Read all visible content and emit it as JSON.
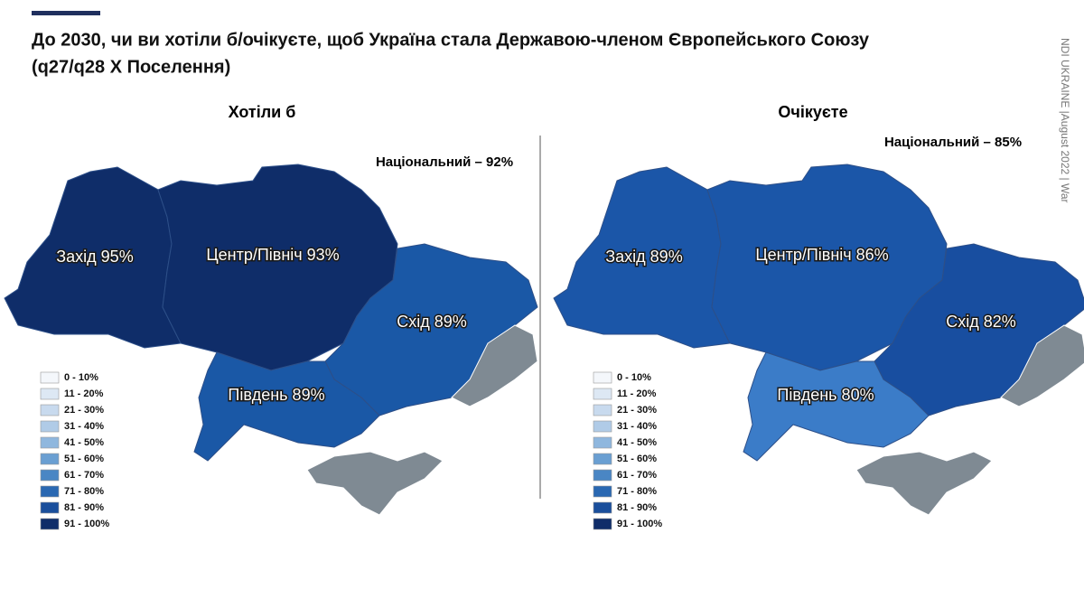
{
  "header": {
    "title_line1": "До 2030, чи ви хотіли б/очікуєте, щоб Україна стала Державою-членом Європейського Союзу",
    "title_line2": "(q27/q28 Х Поселення)"
  },
  "side_note": "NDI UKRAINE |August 2022 | War",
  "maps": [
    {
      "title": "Хотіли б",
      "national": "Національний – 92%",
      "regions": [
        {
          "label": "Захід 95%",
          "color": "#0f2d69"
        },
        {
          "label": "Центр/Північ 93%",
          "color": "#0f2d69"
        },
        {
          "label": "Схід 89%",
          "color": "#1a58a6"
        },
        {
          "label": "Південь 89%",
          "color": "#1a58a6"
        }
      ]
    },
    {
      "title": "Очікуєте",
      "national": "Національний – 85%",
      "regions": [
        {
          "label": "Захід 89%",
          "color": "#1b56a8"
        },
        {
          "label": "Центр/Північ 86%",
          "color": "#1b56a8"
        },
        {
          "label": "Схід 82%",
          "color": "#184ea0"
        },
        {
          "label": "Південь 80%",
          "color": "#3b7cc8"
        }
      ]
    }
  ],
  "legend": {
    "items": [
      "0 - 10%",
      "11 - 20%",
      "21 - 30%",
      "31 - 40%",
      "41 - 50%",
      "51 - 60%",
      "61 - 70%",
      "71 - 80%",
      "81 - 90%",
      "91 - 100%"
    ],
    "colors": [
      "#f4f7fb",
      "#dde8f4",
      "#c8daee",
      "#b0cbe7",
      "#8fb7de",
      "#6a9fd2",
      "#4a86c4",
      "#2a68b2",
      "#1a4f9c",
      "#0f2d69"
    ]
  }
}
